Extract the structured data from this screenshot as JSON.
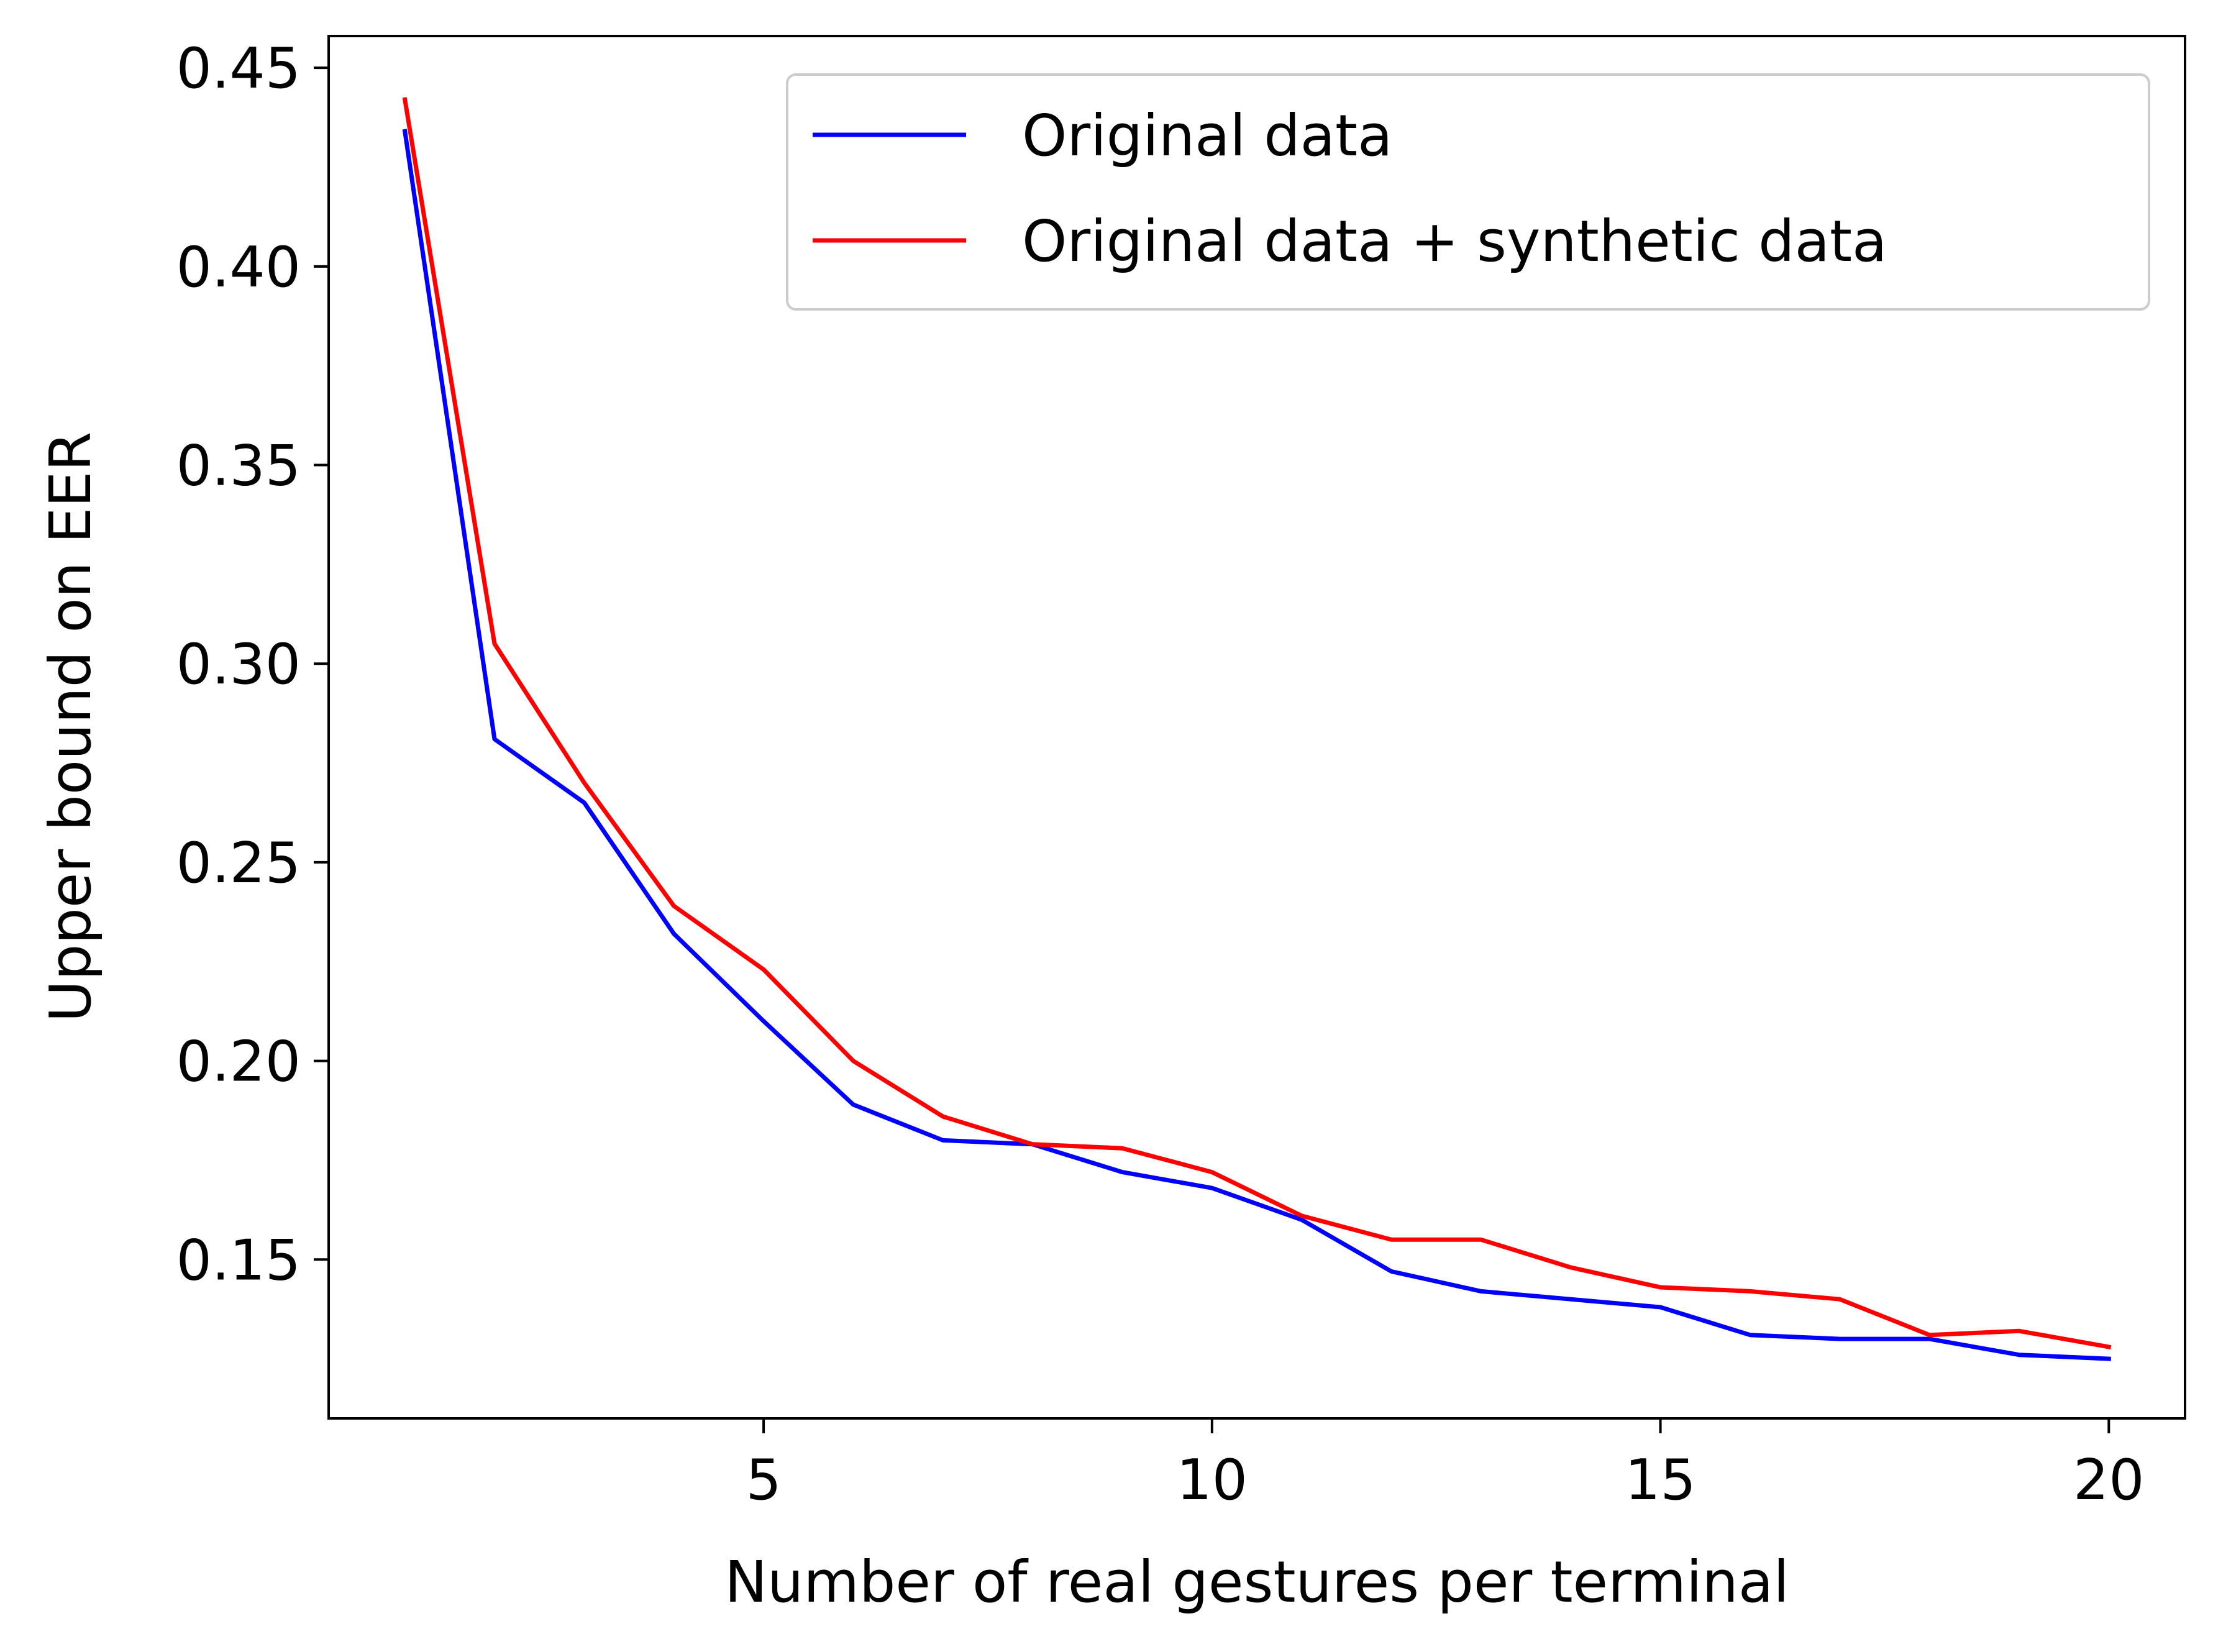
{
  "chart_data": {
    "type": "line",
    "xlabel": "Number of real gestures per terminal",
    "ylabel": "Upper bound on EER",
    "xlim": [
      0.15,
      20.85
    ],
    "ylim": [
      0.11,
      0.458
    ],
    "xticks": [
      5,
      10,
      15,
      20
    ],
    "yticks": [
      0.15,
      0.2,
      0.25,
      0.3,
      0.35,
      0.4,
      0.45
    ],
    "ytick_labels": [
      "0.15",
      "0.20",
      "0.25",
      "0.30",
      "0.35",
      "0.40",
      "0.45"
    ],
    "grid": false,
    "legend_position": "upper-right",
    "x": [
      1,
      2,
      3,
      4,
      5,
      6,
      7,
      8,
      9,
      10,
      11,
      12,
      13,
      14,
      15,
      16,
      17,
      18,
      19,
      20
    ],
    "series": [
      {
        "name": "Original data",
        "color": "#0000ff",
        "values": [
          0.434,
          0.281,
          0.265,
          0.232,
          0.21,
          0.189,
          0.18,
          0.179,
          0.172,
          0.168,
          0.16,
          0.147,
          0.142,
          0.14,
          0.138,
          0.131,
          0.13,
          0.13,
          0.126,
          0.125
        ]
      },
      {
        "name": "Original data + synthetic data",
        "color": "#ff0000",
        "values": [
          0.442,
          0.305,
          0.27,
          0.239,
          0.223,
          0.2,
          0.186,
          0.179,
          0.178,
          0.172,
          0.161,
          0.155,
          0.155,
          0.148,
          0.143,
          0.142,
          0.14,
          0.131,
          0.132,
          0.128
        ]
      }
    ]
  }
}
